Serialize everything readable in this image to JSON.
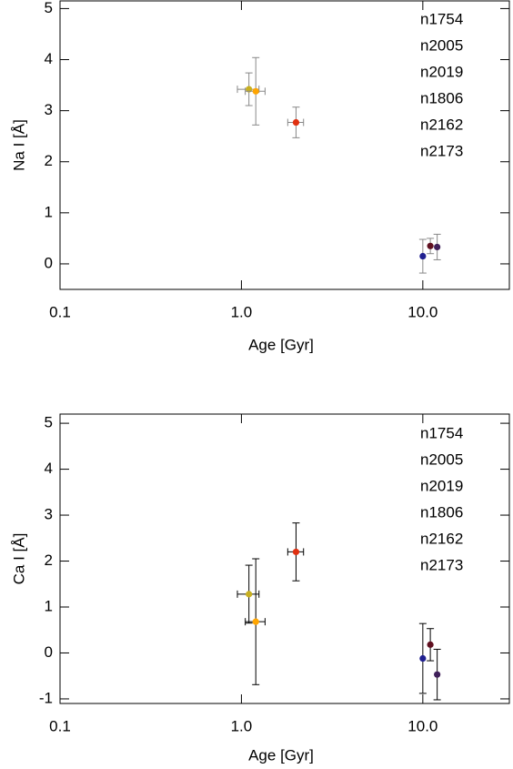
{
  "chart_data": [
    {
      "type": "scatter",
      "xlabel": "Age [Gyr]",
      "ylabel": "Na I [Å]",
      "log_x": true,
      "xlim": [
        0.1,
        30
      ],
      "ylim": [
        -0.5,
        5.15
      ],
      "xticks": [
        0.1,
        {
          "value": 1,
          "label": "1.0"
        },
        {
          "value": 10,
          "label": "10.0"
        }
      ],
      "yticks": [
        0,
        1,
        2,
        3,
        4,
        5
      ],
      "errorbar_color": "#888888",
      "series": [
        {
          "name": "n1754",
          "color": "#1a1ad0",
          "marker_color": "#202090",
          "x": [
            10.0
          ],
          "values": [
            0.15
          ],
          "yerr": [
            0.33
          ],
          "xerr": null
        },
        {
          "name": "n2005",
          "color": "#7a1028",
          "marker_color": "#601020",
          "x": [
            11.0
          ],
          "values": [
            0.35
          ],
          "yerr": [
            0.15
          ],
          "xerr": null
        },
        {
          "name": "n2019",
          "color": "#4a1890",
          "marker_color": "#40205a",
          "x": [
            12.0
          ],
          "values": [
            0.33
          ],
          "yerr": [
            0.25
          ],
          "xerr": null
        },
        {
          "name": "n1806",
          "color": "#c8c020",
          "marker_color": "#c8b020",
          "x": [
            1.1
          ],
          "values": [
            3.42
          ],
          "yerr": [
            0.32
          ],
          "xerr": [
            0.15
          ]
        },
        {
          "name": "n2162",
          "color": "#ffa500",
          "marker_color": "#ffa500",
          "x": [
            1.2
          ],
          "values": [
            3.38
          ],
          "yerr": [
            0.66
          ],
          "xerr": [
            0.15
          ]
        },
        {
          "name": "n2173",
          "color": "#ff3010",
          "marker_color": "#e03010",
          "x": [
            2.0
          ],
          "values": [
            2.77
          ],
          "yerr": [
            0.3
          ],
          "xerr": [
            0.2
          ]
        }
      ]
    },
    {
      "type": "scatter",
      "xlabel": "Age [Gyr]",
      "ylabel": "Ca I [Å]",
      "log_x": true,
      "xlim": [
        0.1,
        30
      ],
      "ylim": [
        -1.1,
        5.2
      ],
      "xticks": [
        0.1,
        {
          "value": 1,
          "label": "1.0"
        },
        {
          "value": 10,
          "label": "10.0"
        }
      ],
      "yticks": [
        -1,
        0,
        1,
        2,
        3,
        4,
        5
      ],
      "errorbar_color": "#000000",
      "series": [
        {
          "name": "n1754",
          "color": "#1a1ad0",
          "marker_color": "#202090",
          "x": [
            10.0
          ],
          "values": [
            -0.12
          ],
          "yerr": [
            0.76
          ],
          "xerr": null
        },
        {
          "name": "n2005",
          "color": "#7a1028",
          "marker_color": "#601020",
          "x": [
            11.0
          ],
          "values": [
            0.18
          ],
          "yerr": [
            0.35
          ],
          "xerr": null
        },
        {
          "name": "n2019",
          "color": "#4a1890",
          "marker_color": "#40205a",
          "x": [
            12.0
          ],
          "values": [
            -0.47
          ],
          "yerr": [
            0.55
          ],
          "xerr": null
        },
        {
          "name": "n1806",
          "color": "#c8c020",
          "marker_color": "#c8b020",
          "x": [
            1.1
          ],
          "values": [
            1.28
          ],
          "yerr": [
            0.63
          ],
          "xerr": [
            0.15
          ]
        },
        {
          "name": "n2162",
          "color": "#ffa500",
          "marker_color": "#ffa500",
          "x": [
            1.2
          ],
          "values": [
            0.68
          ],
          "yerr": [
            1.37
          ],
          "xerr": [
            0.15
          ]
        },
        {
          "name": "n2173",
          "color": "#ff3010",
          "marker_color": "#e03010",
          "x": [
            2.0
          ],
          "values": [
            2.2
          ],
          "yerr": [
            0.63
          ],
          "xerr": [
            0.2
          ]
        }
      ]
    }
  ]
}
